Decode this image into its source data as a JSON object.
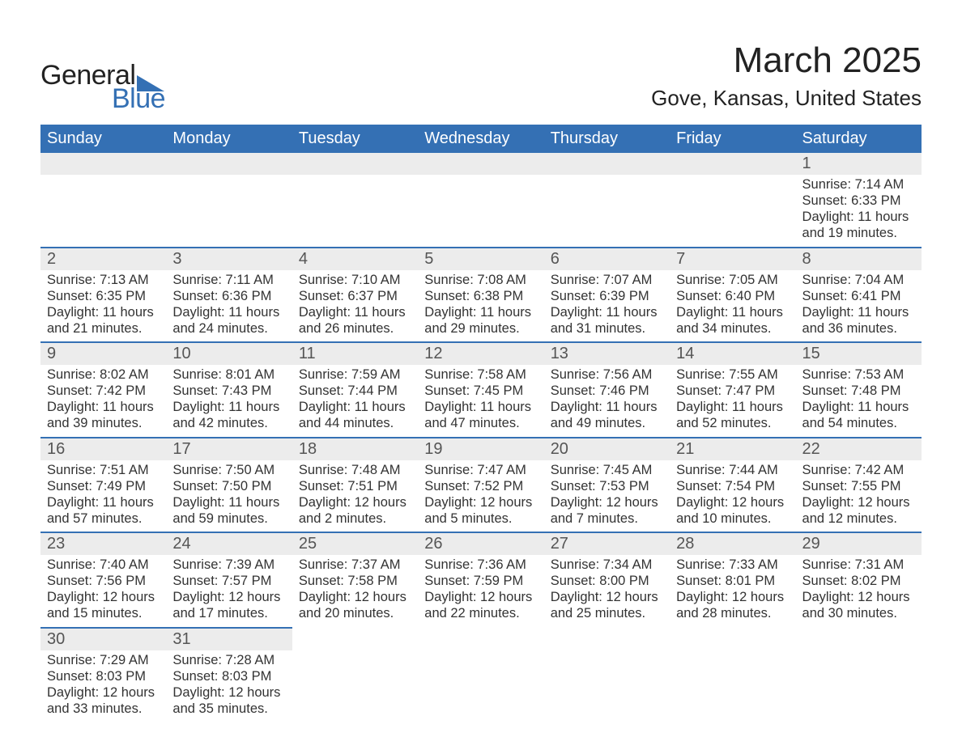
{
  "logo": {
    "text1": "General",
    "text2": "Blue",
    "triangle_color": "#3470b4"
  },
  "title": "March 2025",
  "location": "Gove, Kansas, United States",
  "colors": {
    "header_bg": "#3470b4",
    "header_text": "#ffffff",
    "daynum_bg": "#ececec",
    "row_border": "#3470b4",
    "body_text": "#333333"
  },
  "typography": {
    "title_fontsize_pt": 33,
    "location_fontsize_pt": 20,
    "header_fontsize_pt": 15,
    "daynum_fontsize_pt": 15,
    "cell_fontsize_pt": 12
  },
  "layout": {
    "columns": 7,
    "rows": 6,
    "aspect": "1188x918"
  },
  "weekdays": [
    "Sunday",
    "Monday",
    "Tuesday",
    "Wednesday",
    "Thursday",
    "Friday",
    "Saturday"
  ],
  "weeks": [
    [
      null,
      null,
      null,
      null,
      null,
      null,
      {
        "n": "1",
        "sunrise": "Sunrise: 7:14 AM",
        "sunset": "Sunset: 6:33 PM",
        "day1": "Daylight: 11 hours",
        "day2": "and 19 minutes."
      }
    ],
    [
      {
        "n": "2",
        "sunrise": "Sunrise: 7:13 AM",
        "sunset": "Sunset: 6:35 PM",
        "day1": "Daylight: 11 hours",
        "day2": "and 21 minutes."
      },
      {
        "n": "3",
        "sunrise": "Sunrise: 7:11 AM",
        "sunset": "Sunset: 6:36 PM",
        "day1": "Daylight: 11 hours",
        "day2": "and 24 minutes."
      },
      {
        "n": "4",
        "sunrise": "Sunrise: 7:10 AM",
        "sunset": "Sunset: 6:37 PM",
        "day1": "Daylight: 11 hours",
        "day2": "and 26 minutes."
      },
      {
        "n": "5",
        "sunrise": "Sunrise: 7:08 AM",
        "sunset": "Sunset: 6:38 PM",
        "day1": "Daylight: 11 hours",
        "day2": "and 29 minutes."
      },
      {
        "n": "6",
        "sunrise": "Sunrise: 7:07 AM",
        "sunset": "Sunset: 6:39 PM",
        "day1": "Daylight: 11 hours",
        "day2": "and 31 minutes."
      },
      {
        "n": "7",
        "sunrise": "Sunrise: 7:05 AM",
        "sunset": "Sunset: 6:40 PM",
        "day1": "Daylight: 11 hours",
        "day2": "and 34 minutes."
      },
      {
        "n": "8",
        "sunrise": "Sunrise: 7:04 AM",
        "sunset": "Sunset: 6:41 PM",
        "day1": "Daylight: 11 hours",
        "day2": "and 36 minutes."
      }
    ],
    [
      {
        "n": "9",
        "sunrise": "Sunrise: 8:02 AM",
        "sunset": "Sunset: 7:42 PM",
        "day1": "Daylight: 11 hours",
        "day2": "and 39 minutes."
      },
      {
        "n": "10",
        "sunrise": "Sunrise: 8:01 AM",
        "sunset": "Sunset: 7:43 PM",
        "day1": "Daylight: 11 hours",
        "day2": "and 42 minutes."
      },
      {
        "n": "11",
        "sunrise": "Sunrise: 7:59 AM",
        "sunset": "Sunset: 7:44 PM",
        "day1": "Daylight: 11 hours",
        "day2": "and 44 minutes."
      },
      {
        "n": "12",
        "sunrise": "Sunrise: 7:58 AM",
        "sunset": "Sunset: 7:45 PM",
        "day1": "Daylight: 11 hours",
        "day2": "and 47 minutes."
      },
      {
        "n": "13",
        "sunrise": "Sunrise: 7:56 AM",
        "sunset": "Sunset: 7:46 PM",
        "day1": "Daylight: 11 hours",
        "day2": "and 49 minutes."
      },
      {
        "n": "14",
        "sunrise": "Sunrise: 7:55 AM",
        "sunset": "Sunset: 7:47 PM",
        "day1": "Daylight: 11 hours",
        "day2": "and 52 minutes."
      },
      {
        "n": "15",
        "sunrise": "Sunrise: 7:53 AM",
        "sunset": "Sunset: 7:48 PM",
        "day1": "Daylight: 11 hours",
        "day2": "and 54 minutes."
      }
    ],
    [
      {
        "n": "16",
        "sunrise": "Sunrise: 7:51 AM",
        "sunset": "Sunset: 7:49 PM",
        "day1": "Daylight: 11 hours",
        "day2": "and 57 minutes."
      },
      {
        "n": "17",
        "sunrise": "Sunrise: 7:50 AM",
        "sunset": "Sunset: 7:50 PM",
        "day1": "Daylight: 11 hours",
        "day2": "and 59 minutes."
      },
      {
        "n": "18",
        "sunrise": "Sunrise: 7:48 AM",
        "sunset": "Sunset: 7:51 PM",
        "day1": "Daylight: 12 hours",
        "day2": "and 2 minutes."
      },
      {
        "n": "19",
        "sunrise": "Sunrise: 7:47 AM",
        "sunset": "Sunset: 7:52 PM",
        "day1": "Daylight: 12 hours",
        "day2": "and 5 minutes."
      },
      {
        "n": "20",
        "sunrise": "Sunrise: 7:45 AM",
        "sunset": "Sunset: 7:53 PM",
        "day1": "Daylight: 12 hours",
        "day2": "and 7 minutes."
      },
      {
        "n": "21",
        "sunrise": "Sunrise: 7:44 AM",
        "sunset": "Sunset: 7:54 PM",
        "day1": "Daylight: 12 hours",
        "day2": "and 10 minutes."
      },
      {
        "n": "22",
        "sunrise": "Sunrise: 7:42 AM",
        "sunset": "Sunset: 7:55 PM",
        "day1": "Daylight: 12 hours",
        "day2": "and 12 minutes."
      }
    ],
    [
      {
        "n": "23",
        "sunrise": "Sunrise: 7:40 AM",
        "sunset": "Sunset: 7:56 PM",
        "day1": "Daylight: 12 hours",
        "day2": "and 15 minutes."
      },
      {
        "n": "24",
        "sunrise": "Sunrise: 7:39 AM",
        "sunset": "Sunset: 7:57 PM",
        "day1": "Daylight: 12 hours",
        "day2": "and 17 minutes."
      },
      {
        "n": "25",
        "sunrise": "Sunrise: 7:37 AM",
        "sunset": "Sunset: 7:58 PM",
        "day1": "Daylight: 12 hours",
        "day2": "and 20 minutes."
      },
      {
        "n": "26",
        "sunrise": "Sunrise: 7:36 AM",
        "sunset": "Sunset: 7:59 PM",
        "day1": "Daylight: 12 hours",
        "day2": "and 22 minutes."
      },
      {
        "n": "27",
        "sunrise": "Sunrise: 7:34 AM",
        "sunset": "Sunset: 8:00 PM",
        "day1": "Daylight: 12 hours",
        "day2": "and 25 minutes."
      },
      {
        "n": "28",
        "sunrise": "Sunrise: 7:33 AM",
        "sunset": "Sunset: 8:01 PM",
        "day1": "Daylight: 12 hours",
        "day2": "and 28 minutes."
      },
      {
        "n": "29",
        "sunrise": "Sunrise: 7:31 AM",
        "sunset": "Sunset: 8:02 PM",
        "day1": "Daylight: 12 hours",
        "day2": "and 30 minutes."
      }
    ],
    [
      {
        "n": "30",
        "sunrise": "Sunrise: 7:29 AM",
        "sunset": "Sunset: 8:03 PM",
        "day1": "Daylight: 12 hours",
        "day2": "and 33 minutes."
      },
      {
        "n": "31",
        "sunrise": "Sunrise: 7:28 AM",
        "sunset": "Sunset: 8:03 PM",
        "day1": "Daylight: 12 hours",
        "day2": "and 35 minutes."
      },
      null,
      null,
      null,
      null,
      null
    ]
  ]
}
